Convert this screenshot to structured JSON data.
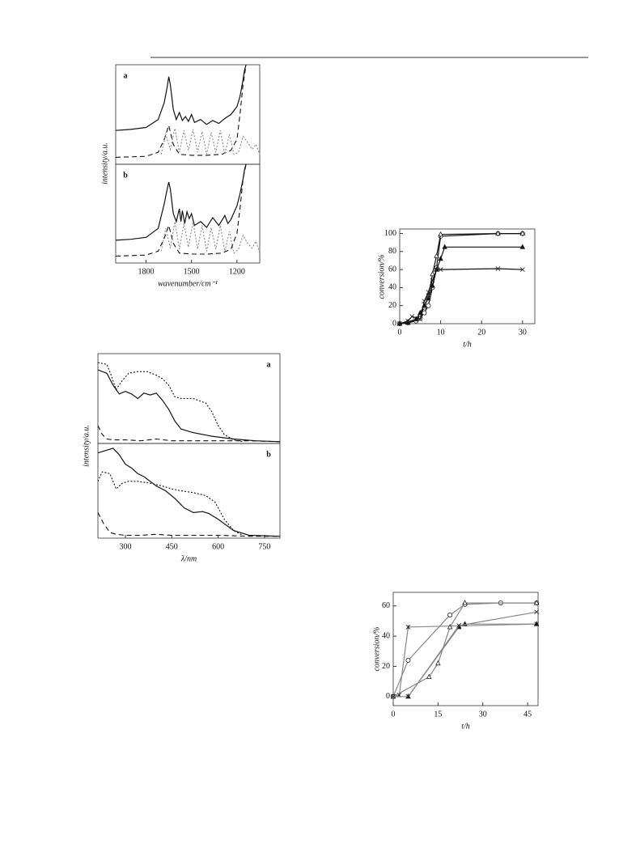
{
  "chart_data": [
    {
      "type": "line",
      "panel_label": "a",
      "label_corner": "top-left",
      "y_label": "intensity/a.u.",
      "xlim": [
        2000,
        1050
      ],
      "ylim": [
        0,
        1
      ],
      "series": [
        {
          "style": "solid",
          "color": "#111",
          "x": [
            2000,
            1900,
            1800,
            1720,
            1680,
            1660,
            1650,
            1640,
            1620,
            1600,
            1580,
            1560,
            1540,
            1520,
            1500,
            1480,
            1440,
            1400,
            1360,
            1320,
            1280,
            1240,
            1200,
            1180,
            1160,
            1150,
            1140
          ],
          "values": [
            0.34,
            0.35,
            0.37,
            0.45,
            0.62,
            0.78,
            0.88,
            0.8,
            0.55,
            0.45,
            0.52,
            0.44,
            0.48,
            0.43,
            0.5,
            0.42,
            0.45,
            0.4,
            0.44,
            0.41,
            0.46,
            0.5,
            0.58,
            0.68,
            0.85,
            0.95,
            1.0
          ]
        },
        {
          "style": "dashed",
          "color": "#111",
          "x": [
            2000,
            1800,
            1720,
            1680,
            1650,
            1620,
            1580,
            1500,
            1400,
            1300,
            1240,
            1200,
            1180,
            1160,
            1140
          ],
          "values": [
            0.07,
            0.08,
            0.12,
            0.25,
            0.39,
            0.2,
            0.1,
            0.09,
            0.09,
            0.1,
            0.14,
            0.25,
            0.5,
            0.8,
            1.0
          ]
        },
        {
          "style": "dotted",
          "color": "#888",
          "x": [
            1700,
            1670,
            1640,
            1610,
            1580,
            1550,
            1520,
            1490,
            1460,
            1430,
            1400,
            1370,
            1340,
            1310,
            1280,
            1250,
            1220,
            1190,
            1160,
            1130,
            1100,
            1075,
            1050
          ],
          "values": [
            0.1,
            0.3,
            0.15,
            0.36,
            0.12,
            0.34,
            0.14,
            0.35,
            0.12,
            0.33,
            0.1,
            0.32,
            0.12,
            0.34,
            0.1,
            0.3,
            0.1,
            0.12,
            0.28,
            0.22,
            0.15,
            0.2,
            0.1
          ]
        }
      ]
    },
    {
      "type": "line",
      "panel_label": "b",
      "label_corner": "top-left",
      "x_label": "wavenumber/cm⁻¹",
      "xlim": [
        2000,
        1050
      ],
      "ylim": [
        0,
        1
      ],
      "xticks": [
        1800,
        1500,
        1200
      ],
      "series": [
        {
          "style": "solid",
          "color": "#111",
          "x": [
            2000,
            1900,
            1800,
            1720,
            1680,
            1660,
            1650,
            1640,
            1620,
            1600,
            1580,
            1570,
            1560,
            1545,
            1530,
            1515,
            1500,
            1480,
            1440,
            1400,
            1360,
            1320,
            1280,
            1260,
            1240,
            1200,
            1180,
            1160,
            1150,
            1140
          ],
          "values": [
            0.23,
            0.24,
            0.26,
            0.35,
            0.6,
            0.75,
            0.82,
            0.75,
            0.5,
            0.42,
            0.55,
            0.42,
            0.53,
            0.4,
            0.52,
            0.45,
            0.5,
            0.38,
            0.42,
            0.36,
            0.46,
            0.38,
            0.48,
            0.4,
            0.44,
            0.58,
            0.7,
            0.85,
            0.95,
            1.0
          ]
        },
        {
          "style": "dashed",
          "color": "#111",
          "x": [
            2000,
            1800,
            1720,
            1680,
            1650,
            1620,
            1580,
            1500,
            1400,
            1300,
            1240,
            1200,
            1180,
            1160,
            1140
          ],
          "values": [
            0.07,
            0.08,
            0.12,
            0.25,
            0.38,
            0.2,
            0.1,
            0.09,
            0.09,
            0.1,
            0.14,
            0.3,
            0.55,
            0.85,
            1.0
          ]
        },
        {
          "style": "dotted",
          "color": "#888",
          "x": [
            1700,
            1670,
            1640,
            1610,
            1580,
            1550,
            1520,
            1490,
            1460,
            1430,
            1400,
            1370,
            1340,
            1310,
            1280,
            1250,
            1220,
            1190,
            1160,
            1130,
            1100,
            1075,
            1050
          ],
          "values": [
            0.12,
            0.35,
            0.15,
            0.42,
            0.14,
            0.4,
            0.16,
            0.42,
            0.14,
            0.38,
            0.12,
            0.36,
            0.14,
            0.38,
            0.12,
            0.32,
            0.1,
            0.14,
            0.28,
            0.2,
            0.15,
            0.22,
            0.1
          ]
        }
      ]
    },
    {
      "type": "line",
      "x_label": "t/h",
      "y_label": "conversion/%",
      "xlim": [
        0,
        33
      ],
      "ylim": [
        0,
        105
      ],
      "xticks": [
        0,
        10,
        20,
        30
      ],
      "yticks": [
        0,
        20,
        40,
        60,
        80,
        100
      ],
      "series": [
        {
          "style": "solid",
          "color": "#111",
          "marker": "circle",
          "x": [
            0,
            2,
            4,
            5,
            6,
            7,
            8,
            9,
            10,
            24,
            30
          ],
          "values": [
            0,
            1,
            3,
            6,
            12,
            20,
            40,
            62,
            97,
            100,
            100
          ]
        },
        {
          "style": "solid",
          "color": "#111",
          "marker": "triangle",
          "x": [
            0,
            2,
            4,
            5,
            6,
            7,
            8,
            9,
            10,
            24,
            30
          ],
          "values": [
            0,
            2,
            5,
            10,
            18,
            30,
            55,
            75,
            99,
            100,
            100
          ]
        },
        {
          "style": "solid",
          "color": "#111",
          "marker": "triangle-filled",
          "x": [
            0,
            2,
            4,
            5,
            6,
            7,
            8,
            9,
            10,
            11,
            30
          ],
          "values": [
            0,
            1,
            5,
            12,
            20,
            28,
            42,
            60,
            72,
            85,
            85
          ]
        },
        {
          "style": "solid",
          "color": "#111",
          "marker": "cross",
          "x": [
            0,
            2,
            3,
            5,
            6,
            7,
            8,
            9,
            10,
            24,
            30
          ],
          "values": [
            0,
            3,
            8,
            5,
            25,
            35,
            48,
            60,
            60,
            61,
            60
          ]
        }
      ]
    },
    {
      "type": "line",
      "panel_label": "a",
      "label_corner": "top-right",
      "y_label": "intensity/a.u.",
      "xlim": [
        211,
        800
      ],
      "ylim": [
        0,
        1
      ],
      "series": [
        {
          "style": "solid",
          "color": "#111",
          "x": [
            211,
            240,
            260,
            280,
            300,
            320,
            340,
            360,
            380,
            400,
            420,
            440,
            460,
            480,
            520,
            580,
            650,
            720,
            800
          ],
          "values": [
            0.82,
            0.78,
            0.65,
            0.55,
            0.58,
            0.55,
            0.5,
            0.56,
            0.54,
            0.56,
            0.48,
            0.38,
            0.25,
            0.16,
            0.12,
            0.08,
            0.05,
            0.03,
            0.02
          ]
        },
        {
          "style": "dotted",
          "color": "#111",
          "x": [
            211,
            240,
            255,
            270,
            290,
            310,
            340,
            370,
            400,
            420,
            440,
            460,
            480,
            520,
            560,
            580,
            600,
            620,
            650,
            680
          ],
          "values": [
            0.9,
            0.88,
            0.75,
            0.6,
            0.7,
            0.78,
            0.8,
            0.8,
            0.76,
            0.72,
            0.65,
            0.52,
            0.5,
            0.5,
            0.45,
            0.35,
            0.2,
            0.1,
            0.04,
            0.02
          ]
        },
        {
          "style": "dashed",
          "color": "#111",
          "x": [
            211,
            225,
            240,
            260,
            300,
            350,
            400,
            450,
            500,
            600,
            700,
            800
          ],
          "values": [
            0.2,
            0.1,
            0.05,
            0.04,
            0.04,
            0.03,
            0.05,
            0.03,
            0.03,
            0.03,
            0.03,
            0.02
          ]
        }
      ]
    },
    {
      "type": "line",
      "panel_label": "b",
      "label_corner": "top-right",
      "x_label": "λ/nm",
      "xlim": [
        211,
        800
      ],
      "ylim": [
        0,
        1
      ],
      "xticks": [
        300,
        450,
        600,
        750
      ],
      "series": [
        {
          "style": "solid",
          "color": "#111",
          "x": [
            211,
            230,
            260,
            280,
            300,
            320,
            340,
            360,
            380,
            400,
            430,
            460,
            490,
            520,
            550,
            570,
            600,
            650,
            700,
            800
          ],
          "values": [
            0.9,
            0.92,
            0.95,
            0.88,
            0.78,
            0.74,
            0.68,
            0.65,
            0.6,
            0.55,
            0.5,
            0.42,
            0.32,
            0.27,
            0.28,
            0.26,
            0.2,
            0.08,
            0.03,
            0.02
          ]
        },
        {
          "style": "dotted",
          "color": "#111",
          "x": [
            211,
            225,
            250,
            270,
            290,
            310,
            340,
            380,
            420,
            450,
            480,
            520,
            560,
            590,
            620,
            650,
            680
          ],
          "values": [
            0.6,
            0.7,
            0.68,
            0.52,
            0.58,
            0.6,
            0.6,
            0.58,
            0.55,
            0.52,
            0.5,
            0.48,
            0.45,
            0.38,
            0.2,
            0.08,
            0.03
          ]
        },
        {
          "style": "dashed",
          "color": "#111",
          "x": [
            211,
            230,
            250,
            270,
            300,
            350,
            400,
            450,
            500,
            600,
            700,
            800
          ],
          "values": [
            0.27,
            0.15,
            0.06,
            0.04,
            0.03,
            0.03,
            0.04,
            0.03,
            0.03,
            0.03,
            0.02,
            0.02
          ]
        }
      ]
    },
    {
      "type": "line",
      "x_label": "t/h",
      "y_label": "conversion/%",
      "xlim": [
        0,
        48.5
      ],
      "ylim": [
        -6,
        69
      ],
      "xticks": [
        0,
        15,
        30,
        45
      ],
      "yticks": [
        0,
        20,
        40,
        60
      ],
      "series": [
        {
          "style": "solid",
          "color": "#888",
          "marker": "star",
          "x": [
            0,
            2,
            5,
            48
          ],
          "values": [
            0,
            1,
            46,
            48
          ]
        },
        {
          "style": "solid",
          "color": "#888",
          "marker": "triangle-filled",
          "x": [
            5,
            22,
            24,
            48
          ],
          "values": [
            0,
            46,
            48,
            48
          ]
        },
        {
          "style": "solid",
          "color": "#888",
          "marker": "circle",
          "x": [
            0,
            5,
            19,
            24,
            36,
            48
          ],
          "values": [
            0,
            24,
            54,
            61,
            62,
            62
          ]
        },
        {
          "style": "solid",
          "color": "#888",
          "marker": "triangle",
          "x": [
            0,
            12,
            15,
            19,
            24,
            48
          ],
          "values": [
            0,
            13,
            22,
            46,
            62,
            62
          ]
        },
        {
          "style": "solid",
          "color": "#888",
          "marker": "cross",
          "x": [
            0,
            5,
            22,
            48
          ],
          "values": [
            0,
            0,
            47,
            56
          ]
        }
      ]
    }
  ]
}
